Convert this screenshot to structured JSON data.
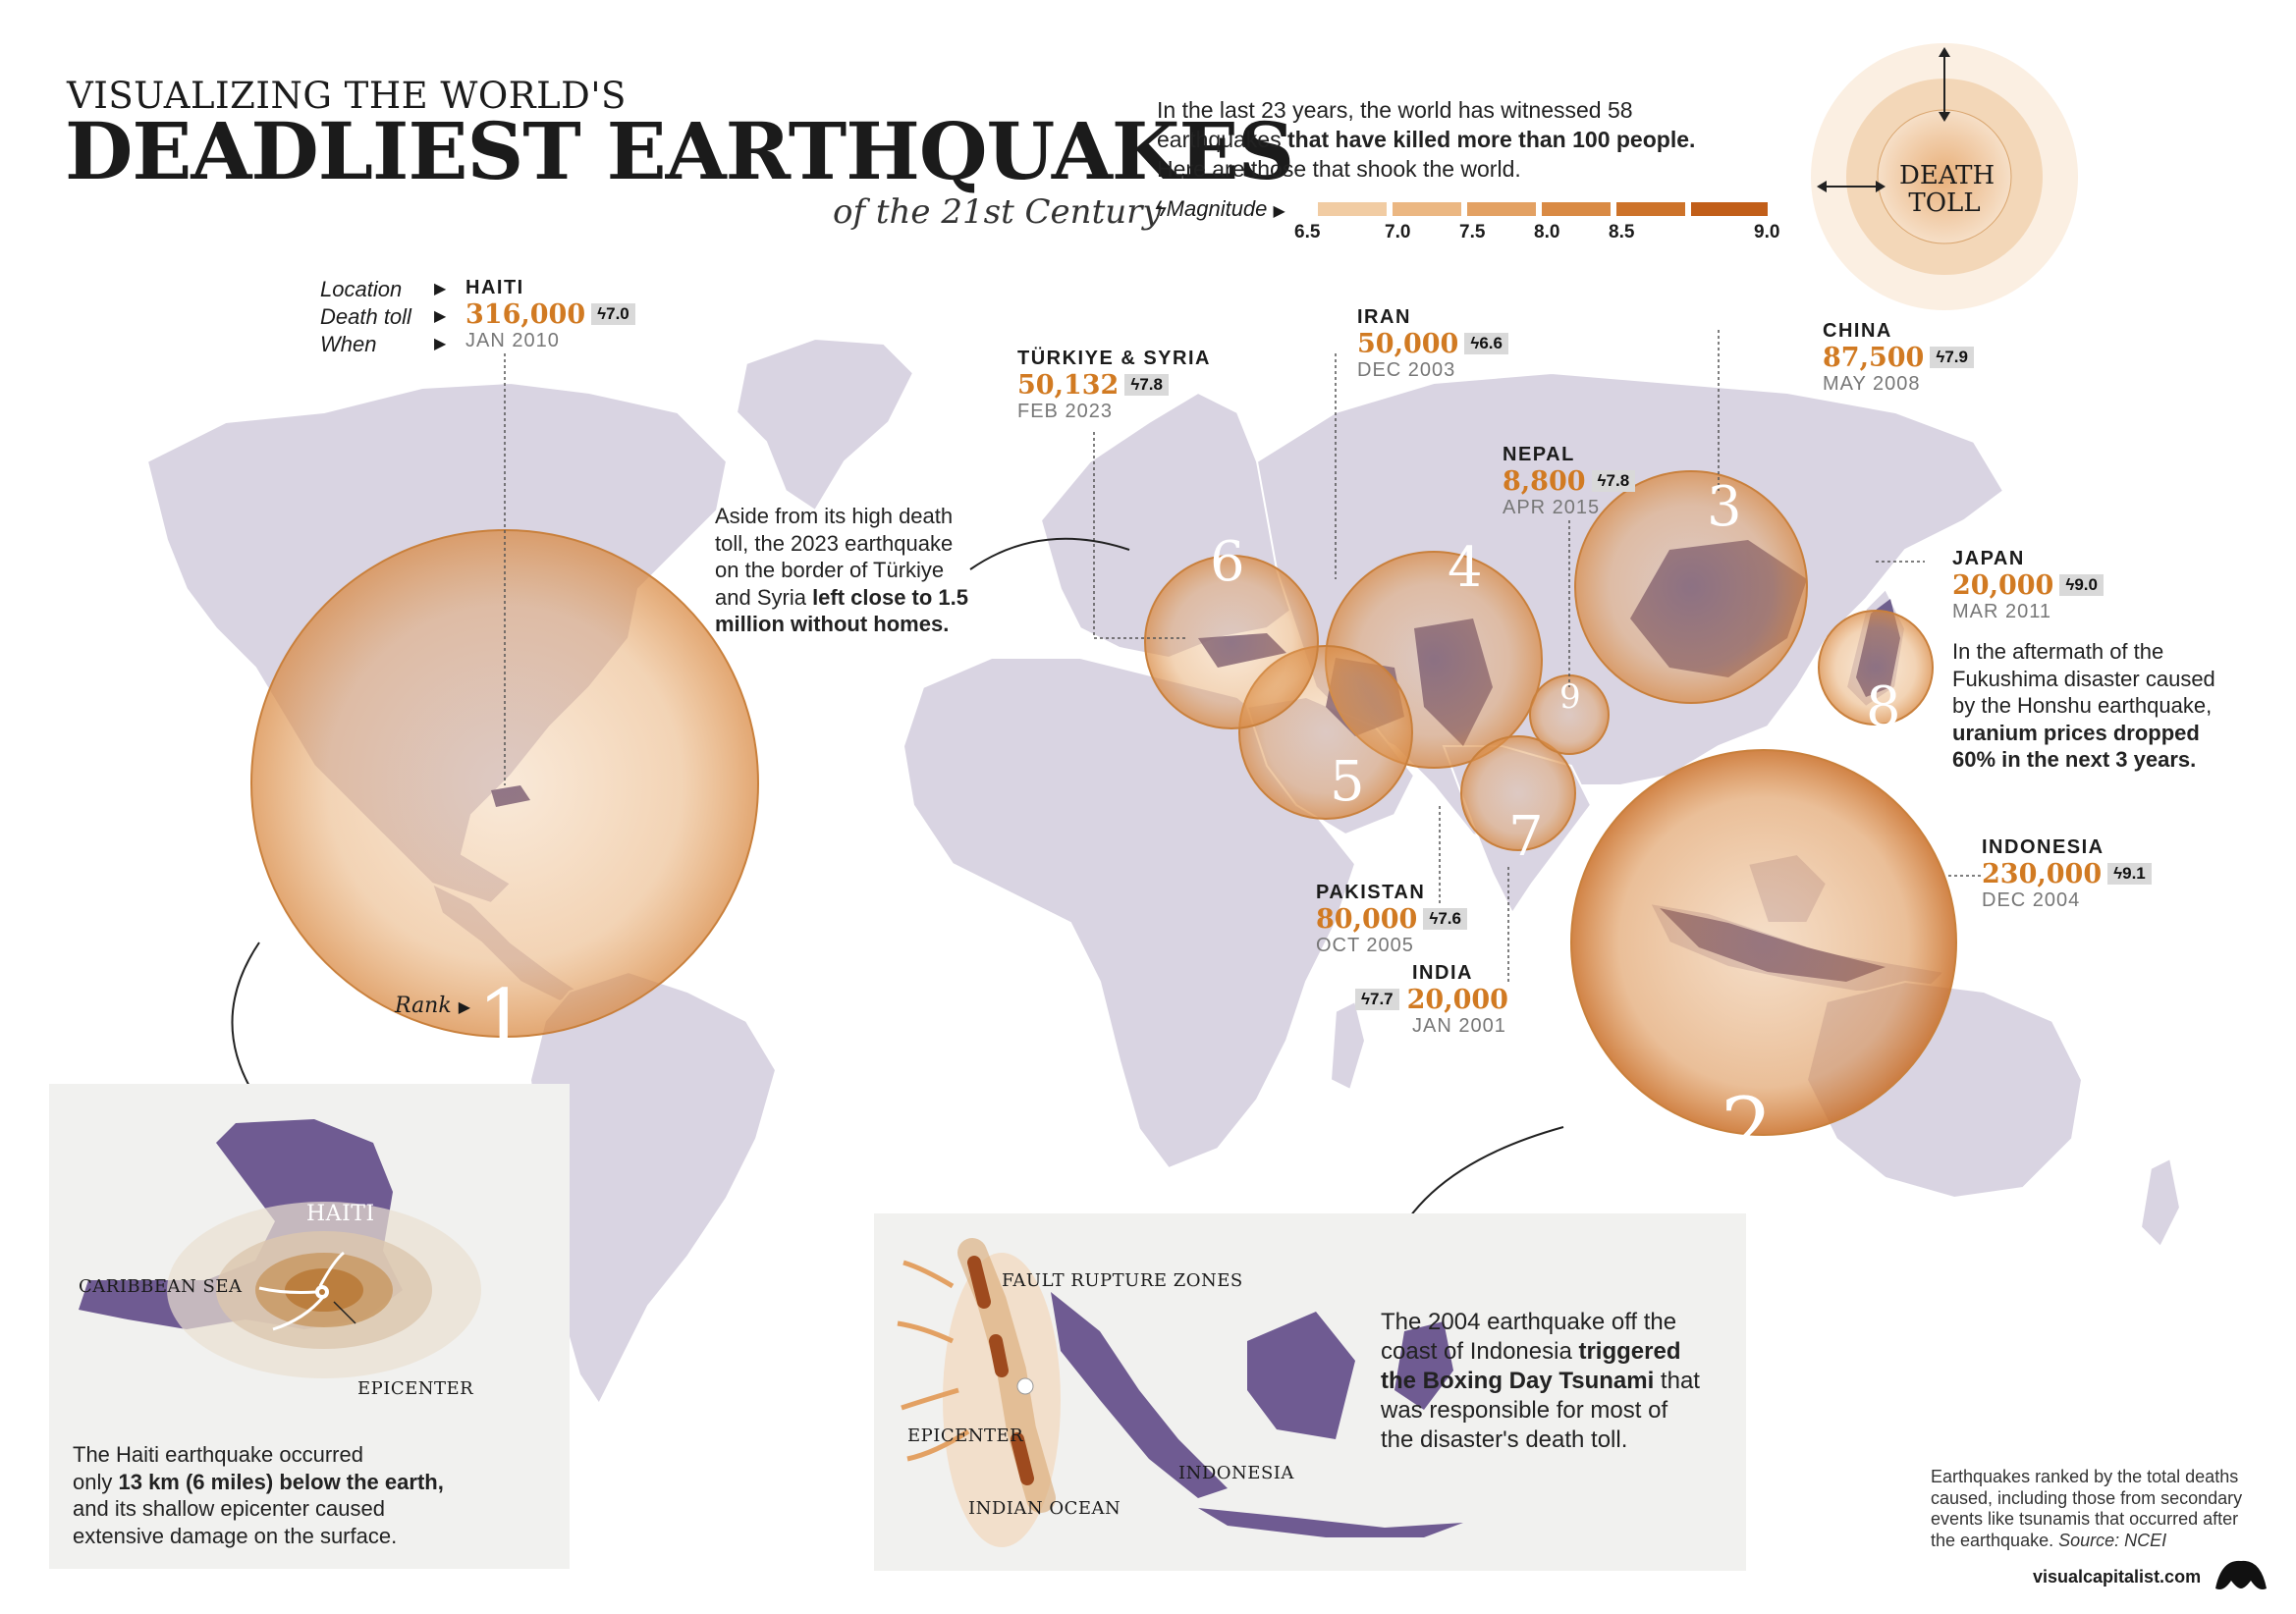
{
  "header": {
    "kicker": "VISUALIZING THE WORLD'S",
    "title": "DEADLIEST EARTHQUAKES",
    "subtitle": "of the 21st Century"
  },
  "intro": {
    "line1": "In the last 23 years, the world has witnessed 58",
    "line2_normal": "earthquakes",
    "line2_bold": " that have killed more than 100 people.",
    "line3": "Here are those that shook the world."
  },
  "legend": {
    "magnitude_label": "Magnitude",
    "ticks": [
      "6.5",
      "7.0",
      "7.5",
      "8.0",
      "8.5",
      "9.0"
    ],
    "colors": [
      "#f1cca3",
      "#ebb782",
      "#e3a163",
      "#d98a44",
      "#cd732a",
      "#c15e19"
    ],
    "death_toll_label_1": "DEATH",
    "death_toll_label_2": "TOLL"
  },
  "key_labels": {
    "location": "Location",
    "death_toll": "Death toll",
    "when": "When",
    "rank": "Rank"
  },
  "earthquakes": [
    {
      "rank": "1",
      "location": "HAITI",
      "death_toll": "316,000",
      "magnitude": "7.0",
      "date": "JAN 2010"
    },
    {
      "rank": "2",
      "location": "INDONESIA",
      "death_toll": "230,000",
      "magnitude": "9.1",
      "date": "DEC 2004"
    },
    {
      "rank": "3",
      "location": "CHINA",
      "death_toll": "87,500",
      "magnitude": "7.9",
      "date": "MAY 2008"
    },
    {
      "rank": "4",
      "location": "PAKISTAN",
      "death_toll": "80,000",
      "magnitude": "7.6",
      "date": "OCT 2005"
    },
    {
      "rank": "5",
      "location": "TÜRKIYE & SYRIA",
      "death_toll": "50,132",
      "magnitude": "7.8",
      "date": "FEB 2023"
    },
    {
      "rank": "6",
      "location": "IRAN",
      "death_toll": "50,000",
      "magnitude": "6.6",
      "date": "DEC 2003"
    },
    {
      "rank": "7",
      "location": "INDIA",
      "death_toll": "20,000",
      "magnitude": "7.7",
      "date": "JAN 2001"
    },
    {
      "rank": "8",
      "location": "JAPAN",
      "death_toll": "20,000",
      "magnitude": "9.0",
      "date": "MAR 2011"
    },
    {
      "rank": "9",
      "location": "NEPAL",
      "death_toll": "8,800",
      "magnitude": "7.8",
      "date": "APR 2015"
    }
  ],
  "annotations": {
    "turkiye": {
      "l1": "Aside from its high death",
      "l2": "toll, the 2023 earthquake",
      "l3": "on the border of Türkiye",
      "l4a": "and Syria ",
      "l4b": "left close to 1.5",
      "l5": "million without homes."
    },
    "japan": {
      "l1": "In the aftermath of the",
      "l2": "Fukushima disaster caused",
      "l3": "by the Honshu earthquake,",
      "l4": "uranium prices dropped",
      "l5": "60% in the next 3 years."
    },
    "haiti_inset": {
      "l1": "The Haiti earthquake occurred",
      "l2a": "only ",
      "l2b": "13 km (6 miles) below the earth,",
      "l3": "and its shallow epicenter caused",
      "l4": "extensive damage on the surface.",
      "label_haiti": "HAITI",
      "label_sea": "CARIBBEAN SEA",
      "label_epicenter": "EPICENTER"
    },
    "indonesia_inset": {
      "l1": "The 2004 earthquake off the",
      "l2a": "coast of Indonesia ",
      "l2b": "triggered",
      "l3a": "the Boxing Day Tsunami",
      "l3b": " that",
      "l4": "was responsible for most of",
      "l5": "the disaster's death toll.",
      "label_fault": "FAULT RUPTURE ZONES",
      "label_epicenter": "EPICENTER",
      "label_ocean": "INDIAN OCEAN",
      "label_indonesia": "INDONESIA"
    }
  },
  "footer": {
    "l1": "Earthquakes ranked by the total deaths",
    "l2": "caused, including those from secondary",
    "l3": "events like tsunamis that occurred after",
    "l4a": "the earthquake. ",
    "l4b": "Source: NCEI",
    "brand": "visualcapitalist.com"
  }
}
